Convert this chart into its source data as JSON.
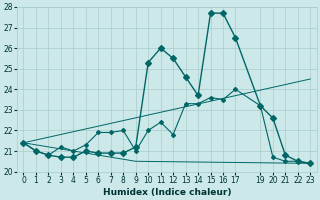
{
  "xlabel": "Humidex (Indice chaleur)",
  "bg_color": "#cce8e8",
  "grid_color": "#aacccc",
  "line_color": "#006666",
  "xlim": [
    -0.5,
    23.5
  ],
  "ylim": [
    20,
    28
  ],
  "xticks": [
    0,
    1,
    2,
    3,
    4,
    5,
    6,
    7,
    8,
    9,
    10,
    11,
    12,
    13,
    14,
    15,
    16,
    17,
    19,
    20,
    21,
    22,
    23
  ],
  "yticks": [
    20,
    21,
    22,
    23,
    24,
    25,
    26,
    27,
    28
  ],
  "main_line": {
    "x": [
      0,
      1,
      2,
      3,
      4,
      5,
      6,
      7,
      8,
      9,
      10,
      11,
      12,
      13,
      14,
      15,
      16,
      17,
      19,
      20,
      21,
      22,
      23
    ],
    "y": [
      21.4,
      21.0,
      20.8,
      20.7,
      20.7,
      21.0,
      20.9,
      20.9,
      20.9,
      21.2,
      25.3,
      26.0,
      25.5,
      24.6,
      23.7,
      27.7,
      27.7,
      26.5,
      23.2,
      22.6,
      20.8,
      20.5,
      20.4
    ]
  },
  "second_line": {
    "x": [
      0,
      1,
      2,
      3,
      4,
      5,
      6,
      7,
      8,
      9,
      10,
      11,
      12,
      13,
      14,
      15,
      16,
      17,
      19,
      20,
      21,
      22,
      23
    ],
    "y": [
      21.4,
      21.0,
      20.8,
      21.2,
      21.0,
      21.3,
      21.9,
      21.9,
      22.0,
      21.0,
      22.0,
      22.4,
      21.8,
      23.3,
      23.3,
      23.6,
      23.5,
      24.0,
      23.2,
      20.7,
      20.5,
      20.5,
      20.4
    ]
  },
  "upper_trend": {
    "x": [
      0,
      23
    ],
    "y": [
      21.4,
      24.5
    ]
  },
  "lower_flat": {
    "x": [
      0,
      9,
      23
    ],
    "y": [
      21.4,
      20.5,
      20.4
    ]
  }
}
